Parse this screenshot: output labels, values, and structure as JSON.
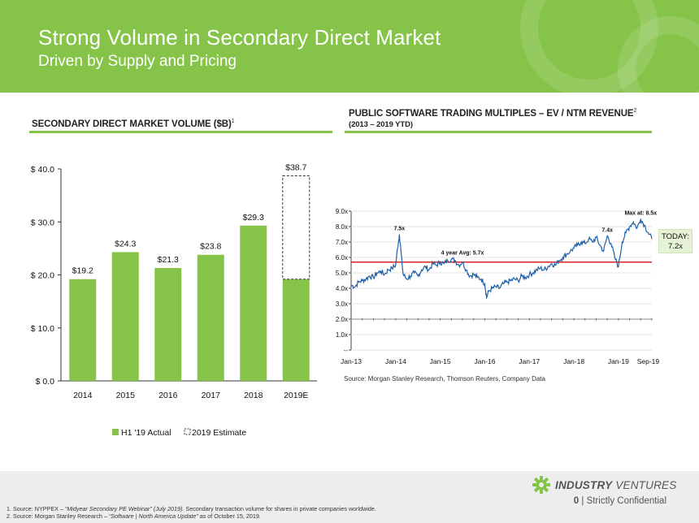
{
  "header": {
    "title": "Strong Volume in Secondary Direct Market",
    "subtitle": "Driven by Supply and Pricing"
  },
  "left_section": {
    "title": "SECONDARY DIRECT MARKET VOLUME ($B)",
    "footnote_marker": "1"
  },
  "right_section": {
    "title": "PUBLIC SOFTWARE TRADING MULTIPLES – EV / NTM REVENUE",
    "footnote_marker": "2",
    "subtitle": "(2013 – 2019 YTD)",
    "source": "Source: Morgan Stanley Research, Thomson Reuters, Company Data",
    "today_label": "TODAY:",
    "today_value": "7.2x"
  },
  "chart_data": [
    {
      "type": "bar",
      "title": "SECONDARY DIRECT MARKET VOLUME ($B)",
      "categories": [
        "2014",
        "2015",
        "2016",
        "2017",
        "2018",
        "2019E"
      ],
      "series": [
        {
          "name": "H1 '19 Actual",
          "values": [
            19.2,
            24.3,
            21.3,
            23.8,
            29.3,
            19.2
          ]
        },
        {
          "name": "2019 Estimate",
          "values": [
            null,
            null,
            null,
            null,
            null,
            38.7
          ]
        }
      ],
      "data_labels": [
        "$19.2",
        "$24.3",
        "$21.3",
        "$23.8",
        "$29.3",
        "$38.7"
      ],
      "ytick_labels": [
        "$ 0.0",
        "$ 10.0",
        "$ 20.0",
        "$ 30.0",
        "$ 40.0"
      ],
      "ylim": [
        0,
        40
      ],
      "yticks": [
        0,
        10,
        20,
        30,
        40
      ],
      "legend": {
        "placement": "bottom",
        "actual_label": "H1 '19 Actual",
        "estimate_label": "2019 Estimate"
      },
      "colors": {
        "bar": "#86c349",
        "estimate_border": "#333333"
      }
    },
    {
      "type": "line",
      "title": "PUBLIC SOFTWARE TRADING MULTIPLES – EV / NTM REVENUE",
      "xtick_labels": [
        "Jan-13",
        "Jan-14",
        "Jan-15",
        "Jan-16",
        "Jan-17",
        "Jan-18",
        "Jan-19",
        "Sep-19"
      ],
      "xtick_values": [
        0,
        12,
        24,
        36,
        48,
        60,
        72,
        80
      ],
      "x_unit": "months since Jan-13",
      "ytick_labels": [
        "--",
        "1.0x",
        "2.0x",
        "3.0x",
        "4.0x",
        "5.0x",
        "6.0x",
        "7.0x",
        "8.0x",
        "9.0x"
      ],
      "yticks": [
        0,
        1,
        2,
        3,
        4,
        5,
        6,
        7,
        8,
        9
      ],
      "ylim": [
        0,
        9
      ],
      "xlim": [
        0,
        81
      ],
      "series": [
        {
          "name": "EV / NTM Revenue",
          "x": [
            0,
            1,
            2,
            3,
            4,
            5,
            6,
            7,
            8,
            9,
            10,
            11,
            12,
            12.5,
            13,
            13.5,
            14,
            15,
            16,
            17,
            18,
            19,
            20,
            21,
            22,
            23,
            24,
            25,
            26,
            27,
            28,
            29,
            30,
            31,
            32,
            33,
            34,
            35,
            36,
            36.5,
            37,
            38,
            39,
            40,
            41,
            42,
            43,
            44,
            45,
            46,
            47,
            48,
            49,
            50,
            51,
            52,
            53,
            54,
            55,
            56,
            57,
            58,
            59,
            60,
            61,
            62,
            63,
            64,
            65,
            66,
            67,
            68,
            69,
            70,
            71,
            72,
            73,
            74,
            75,
            76,
            77,
            78,
            79,
            80,
            81
          ],
          "values": [
            4.2,
            4.1,
            4.4,
            4.5,
            4.6,
            4.8,
            4.7,
            5.0,
            5.1,
            4.9,
            5.2,
            5.3,
            5.5,
            6.6,
            7.5,
            6.2,
            4.9,
            4.6,
            4.8,
            5.0,
            4.8,
            5.2,
            5.4,
            5.2,
            5.6,
            5.5,
            5.7,
            5.6,
            5.8,
            5.9,
            5.8,
            5.5,
            5.7,
            5.2,
            4.8,
            4.9,
            4.7,
            4.6,
            4.3,
            3.4,
            3.8,
            4.0,
            4.1,
            4.0,
            4.3,
            4.4,
            4.5,
            4.6,
            4.5,
            4.8,
            4.7,
            4.9,
            5.0,
            5.2,
            5.3,
            5.2,
            5.4,
            5.6,
            5.5,
            5.8,
            6.0,
            6.2,
            6.4,
            6.6,
            6.8,
            7.0,
            6.9,
            7.2,
            7.0,
            7.3,
            6.8,
            6.4,
            7.4,
            6.9,
            6.0,
            5.4,
            7.0,
            7.6,
            8.0,
            8.3,
            7.9,
            8.5,
            8.1,
            7.6,
            7.2
          ]
        }
      ],
      "average": {
        "value": 5.7,
        "label": "4 year Avg: 5.7x"
      },
      "annotations": [
        {
          "text": "7.5x",
          "x": 13,
          "y": 7.5
        },
        {
          "text": "7.4x",
          "x": 69,
          "y": 7.4
        },
        {
          "text": "Max at: 8.5x",
          "x": 78,
          "y": 8.5
        }
      ],
      "colors": {
        "line": "#1f5fa8",
        "average": "#e02020"
      }
    }
  ],
  "footer": {
    "footnote_1_prefix": "1. Source: NYPPEX – ",
    "footnote_1_italic": "“Midyear Secondary PE Webinar” (July 2019).",
    "footnote_1_suffix": " Secondary transaction volume for shares in private companies worldwide.",
    "footnote_2_prefix": "2. Source: Morgan Stanley Research – ",
    "footnote_2_italic": "“Software | North America Update”",
    "footnote_2_suffix": " as of October 15, 2019.",
    "logo_bold": "INDUSTRY",
    "logo_light": "VENTURES",
    "page_number": "0",
    "confidential": " | Strictly Confidential"
  }
}
